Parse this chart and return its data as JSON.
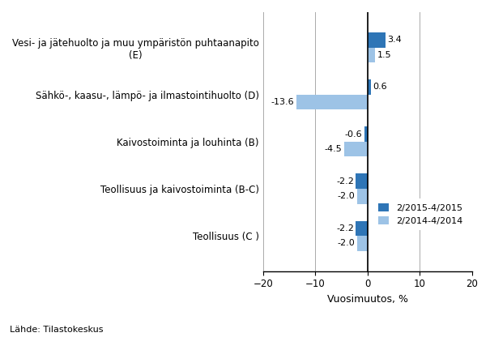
{
  "categories": [
    "Teollisuus (C )",
    "Teollisuus ja kaivostoiminta (B-C)",
    "Kaivostoiminta ja louhinta (B)",
    "Sähkö-, kaasu-, lämpö- ja ilmastointihuolto (D)",
    "Vesi- ja jätehuolto ja muu ympäristön puhtaanapito\n(E)"
  ],
  "series1_label": "2/2015-4/2015",
  "series2_label": "2/2014-4/2014",
  "series1_values": [
    -2.2,
    -2.2,
    -0.6,
    0.6,
    3.4
  ],
  "series2_values": [
    -2.0,
    -2.0,
    -4.5,
    -13.6,
    1.5
  ],
  "series1_color": "#2E75B6",
  "series2_color": "#9DC3E6",
  "xlabel": "Vuosimuutos, %",
  "xlim": [
    -20,
    20
  ],
  "xticks": [
    -20,
    -10,
    0,
    10,
    20
  ],
  "footnote": "Lähde: Tilastokeskus",
  "bar_height": 0.32,
  "grid_color": "#AAAAAA",
  "background_color": "#FFFFFF",
  "label_fontsize": 8,
  "tick_fontsize": 8.5,
  "value_fontsize": 8
}
